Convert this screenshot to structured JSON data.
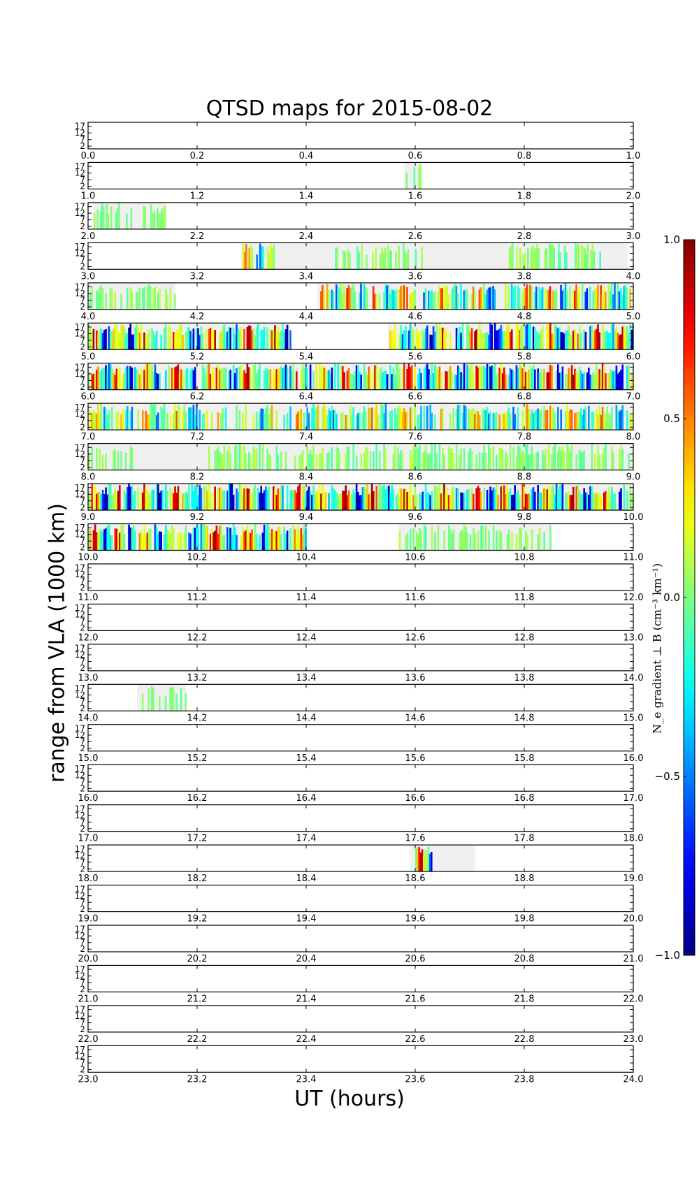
{
  "chart_data": {
    "type": "heatmap",
    "title": "QTSD maps for 2015-08-02",
    "xlabel": "UT (hours)",
    "ylabel": "range from VLA (1000 km)",
    "y_ticks": [
      "17",
      "12",
      "7",
      "2"
    ],
    "ylim": [
      0,
      20
    ],
    "colorbar": {
      "label": "N_e gradient ⊥ B (cm⁻³ km⁻¹)",
      "ticks": [
        "1.0",
        "0.5",
        "0.0",
        "−0.5",
        "−1.0"
      ],
      "tick_values": [
        1.0,
        0.5,
        0.0,
        -0.5,
        -1.0
      ],
      "range": [
        -1.0,
        1.0
      ],
      "colormap": "jet"
    },
    "panels": [
      {
        "hour": 0,
        "ticks": [
          "0.0",
          "0.2",
          "0.4",
          "0.6",
          "0.8",
          "1.0"
        ],
        "coverage": [],
        "activity": []
      },
      {
        "hour": 1,
        "ticks": [
          "1.0",
          "1.2",
          "1.4",
          "1.6",
          "1.8",
          "2.0"
        ],
        "coverage": [
          [
            0.58,
            0.61
          ]
        ],
        "activity": [
          [
            0.58,
            0.61,
            0.1
          ]
        ]
      },
      {
        "hour": 2,
        "ticks": [
          "2.0",
          "2.2",
          "2.4",
          "2.6",
          "2.8",
          "3.0"
        ],
        "coverage": [
          [
            0.01,
            0.14
          ]
        ],
        "activity": [
          [
            0.01,
            0.14,
            0.15
          ]
        ]
      },
      {
        "hour": 3,
        "ticks": [
          "3.0",
          "3.2",
          "3.4",
          "3.6",
          "3.8",
          "4.0"
        ],
        "coverage": [
          [
            0.28,
            0.99
          ]
        ],
        "activity": [
          [
            0.28,
            0.34,
            0.6
          ],
          [
            0.45,
            0.62,
            0.25
          ],
          [
            0.76,
            0.94,
            0.45
          ]
        ]
      },
      {
        "hour": 4,
        "ticks": [
          "4.0",
          "4.2",
          "4.4",
          "4.6",
          "4.8",
          "5.0"
        ],
        "coverage": [
          [
            0.0,
            0.16
          ],
          [
            0.42,
            1.0
          ]
        ],
        "activity": [
          [
            0.0,
            0.16,
            0.4
          ],
          [
            0.42,
            1.0,
            0.75
          ]
        ]
      },
      {
        "hour": 5,
        "ticks": [
          "5.0",
          "5.2",
          "5.4",
          "5.6",
          "5.8",
          "6.0"
        ],
        "coverage": [
          [
            0.0,
            0.37
          ],
          [
            0.55,
            1.0
          ]
        ],
        "activity": [
          [
            0.0,
            0.37,
            1.0
          ],
          [
            0.55,
            1.0,
            1.0
          ]
        ]
      },
      {
        "hour": 6,
        "ticks": [
          "6.0",
          "6.2",
          "6.4",
          "6.6",
          "6.8",
          "7.0"
        ],
        "coverage": [
          [
            0.0,
            1.0
          ]
        ],
        "activity": [
          [
            0.0,
            1.0,
            0.95
          ]
        ]
      },
      {
        "hour": 7,
        "ticks": [
          "7.0",
          "7.2",
          "7.4",
          "7.6",
          "7.8",
          "8.0"
        ],
        "coverage": [
          [
            0.0,
            1.0
          ]
        ],
        "activity": [
          [
            0.0,
            1.0,
            0.6
          ]
        ]
      },
      {
        "hour": 8,
        "ticks": [
          "8.0",
          "8.2",
          "8.4",
          "8.6",
          "8.8",
          "9.0"
        ],
        "coverage": [
          [
            0.0,
            1.0
          ]
        ],
        "activity": [
          [
            0.0,
            0.08,
            0.2
          ],
          [
            0.22,
            1.0,
            0.45
          ]
        ]
      },
      {
        "hour": 9,
        "ticks": [
          "9.0",
          "9.2",
          "9.4",
          "9.6",
          "9.8",
          "10.0"
        ],
        "coverage": [
          [
            0.0,
            1.0
          ]
        ],
        "activity": [
          [
            0.0,
            1.0,
            1.0
          ]
        ]
      },
      {
        "hour": 10,
        "ticks": [
          "10.0",
          "10.2",
          "10.4",
          "10.6",
          "10.8",
          "11.0"
        ],
        "coverage": [
          [
            0.0,
            0.4
          ],
          [
            0.57,
            0.85
          ]
        ],
        "activity": [
          [
            0.0,
            0.4,
            1.0
          ],
          [
            0.57,
            0.85,
            0.3
          ]
        ]
      },
      {
        "hour": 11,
        "ticks": [
          "11.0",
          "11.2",
          "11.4",
          "11.6",
          "11.8",
          "12.0"
        ],
        "coverage": [],
        "activity": []
      },
      {
        "hour": 12,
        "ticks": [
          "12.0",
          "12.2",
          "12.4",
          "12.6",
          "12.8",
          "13.0"
        ],
        "coverage": [],
        "activity": []
      },
      {
        "hour": 13,
        "ticks": [
          "13.0",
          "13.2",
          "13.4",
          "13.6",
          "13.8",
          "14.0"
        ],
        "coverage": [],
        "activity": []
      },
      {
        "hour": 14,
        "ticks": [
          "14.0",
          "14.2",
          "14.4",
          "14.6",
          "14.8",
          "15.0"
        ],
        "coverage": [
          [
            0.09,
            0.18
          ]
        ],
        "activity": [
          [
            0.09,
            0.18,
            0.1
          ]
        ]
      },
      {
        "hour": 15,
        "ticks": [
          "15.0",
          "15.2",
          "15.4",
          "15.6",
          "15.8",
          "16.0"
        ],
        "coverage": [],
        "activity": []
      },
      {
        "hour": 16,
        "ticks": [
          "16.0",
          "16.2",
          "16.4",
          "16.6",
          "16.8",
          "17.0"
        ],
        "coverage": [],
        "activity": []
      },
      {
        "hour": 17,
        "ticks": [
          "17.0",
          "17.2",
          "17.4",
          "17.6",
          "17.8",
          "18.0"
        ],
        "coverage": [],
        "activity": []
      },
      {
        "hour": 18,
        "ticks": [
          "18.0",
          "18.2",
          "18.4",
          "18.6",
          "18.8",
          "19.0"
        ],
        "coverage": [
          [
            0.59,
            0.71
          ]
        ],
        "activity": [
          [
            0.6,
            0.63,
            1.0
          ]
        ]
      },
      {
        "hour": 19,
        "ticks": [
          "19.0",
          "19.2",
          "19.4",
          "19.6",
          "19.8",
          "20.0"
        ],
        "coverage": [],
        "activity": []
      },
      {
        "hour": 20,
        "ticks": [
          "20.0",
          "20.2",
          "20.4",
          "20.6",
          "20.8",
          "21.0"
        ],
        "coverage": [],
        "activity": []
      },
      {
        "hour": 21,
        "ticks": [
          "21.0",
          "21.2",
          "21.4",
          "21.6",
          "21.8",
          "22.0"
        ],
        "coverage": [],
        "activity": []
      },
      {
        "hour": 22,
        "ticks": [
          "22.0",
          "22.2",
          "22.4",
          "22.6",
          "22.8",
          "23.0"
        ],
        "coverage": [],
        "activity": []
      },
      {
        "hour": 23,
        "ticks": [
          "23.0",
          "23.2",
          "23.4",
          "23.6",
          "23.8",
          "24.0"
        ],
        "coverage": [],
        "activity": []
      }
    ]
  }
}
